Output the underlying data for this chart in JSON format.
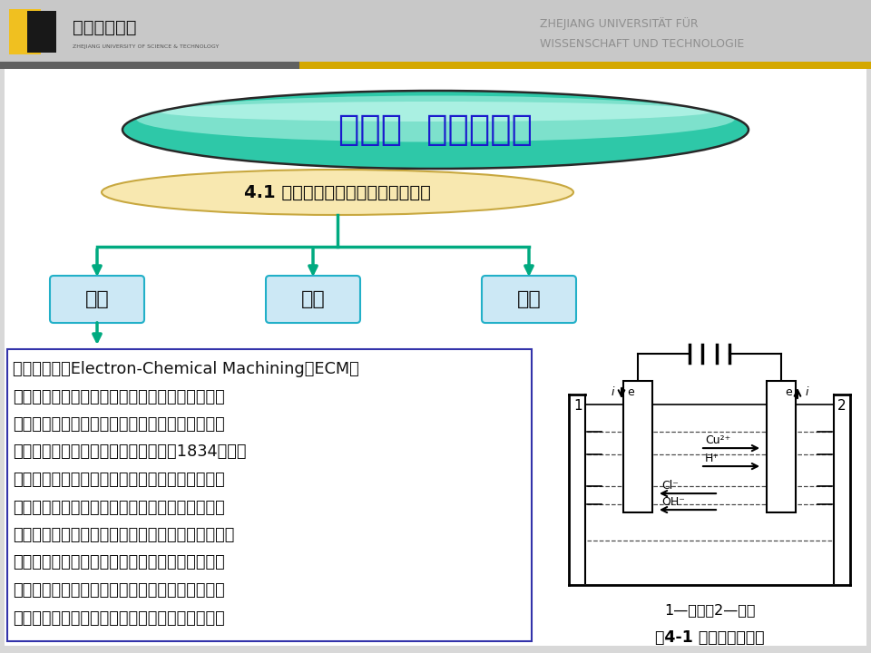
{
  "bg_color": "#d8d8d8",
  "header_bg": "#cccccc",
  "title_text": "第四章  电化学加工",
  "subtitle_text": "4.1 电化学加工的原理、特点和分类",
  "box_labels": [
    "原理",
    "分类",
    "特点"
  ],
  "arrow_color": "#00aa80",
  "main_text_lines": [
    "电化学加工（Electron-Chemical Machining，ECM）",
    "是在电的作用下，在阴阳二极产生得失电子的电化",
    "学反应，而去除材料（阳极溢解）或在工件材料上",
    "镀覆材料（阴极沉积）的加工方法。在1834年法拉",
    "第发现了电化学作用原理后，又先后发现电镇、电",
    "铸、电解加工等电化学加工方法，并在工业上得到",
    "广泛应用。伴随着高新技术的发展，复合电解加工、",
    "细微电化学加工、精密电铸、激光电化学加工等也",
    "迅速发展起来，目前，电化学加工已在国防工业、",
    "汽车工业、机械工业等发挥着越来越重要的作用。"
  ],
  "caption_text": "1—阳极；2—阴极",
  "fig_label": "图4-1 电化学加工原理",
  "univ_name_cn": "浙江科技学院",
  "univ_name_de1": "ZHEJIANG UNIVERSITÄT FÜR",
  "univ_name_de2": "WISSENSCHAFT UND TECHNOLOGIE",
  "univ_name_sub": "ZHEJIANG UNIVERSITY OF SCIENCE & TECHNOLOGY"
}
